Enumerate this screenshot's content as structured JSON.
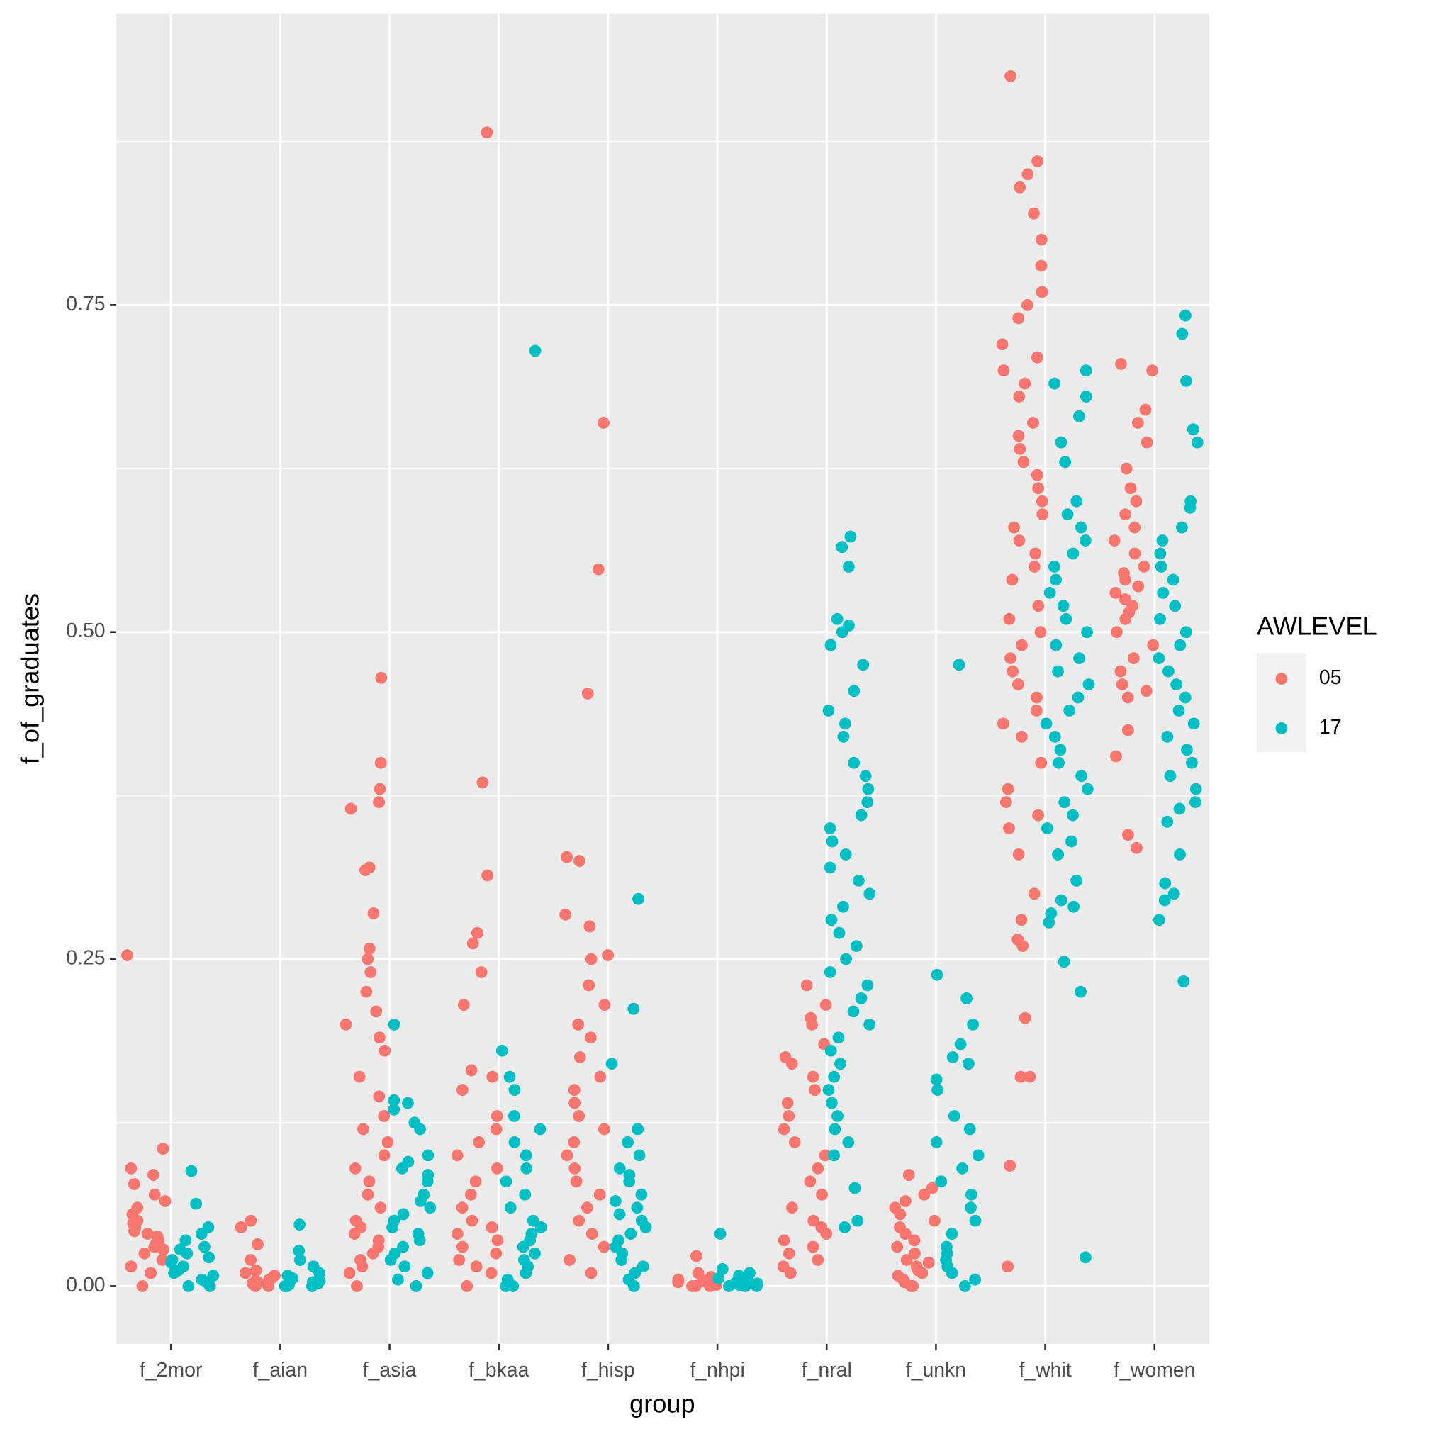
{
  "chart_data": {
    "type": "jitter",
    "x_label": "group",
    "y_label": "f_of_graduates",
    "legend_title": "AWLEVEL",
    "grid": true,
    "legend_position": "right",
    "ylim": [
      -0.0441,
      0.9727
    ],
    "yticks": [
      {
        "value": 0,
        "label": "0.00"
      },
      {
        "value": 0.25,
        "label": "0.25"
      },
      {
        "value": 0.5,
        "label": "0.50"
      },
      {
        "value": 0.75,
        "label": "0.75"
      }
    ],
    "categories": [
      "f_2mor",
      "f_aian",
      "f_asia",
      "f_bkaa",
      "f_hisp",
      "f_nhpi",
      "f_nral",
      "f_unkn",
      "f_whit",
      "f_women"
    ],
    "series": [
      {
        "name": "05",
        "color": "#F8766D",
        "values": [
          [
            0.253,
            0.105,
            0.09,
            0.085,
            0.078,
            0.07,
            0.065,
            0.06,
            0.055,
            0.05,
            0.048,
            0.045,
            0.042,
            0.04,
            0.038,
            0.035,
            0.032,
            0.03,
            0.028,
            0.025,
            0.02,
            0.015,
            0.01,
            0.0
          ],
          [
            0.05,
            0.045,
            0.032,
            0.02,
            0.012,
            0.01,
            0.008,
            0.006,
            0.005,
            0.004,
            0.003,
            0.002,
            0.001,
            0.0,
            0.0
          ],
          [
            0.465,
            0.4,
            0.38,
            0.37,
            0.365,
            0.32,
            0.318,
            0.285,
            0.258,
            0.25,
            0.24,
            0.225,
            0.21,
            0.2,
            0.19,
            0.18,
            0.16,
            0.145,
            0.13,
            0.12,
            0.11,
            0.1,
            0.09,
            0.08,
            0.07,
            0.06,
            0.05,
            0.045,
            0.04,
            0.035,
            0.03,
            0.025,
            0.02,
            0.015,
            0.01,
            0.0
          ],
          [
            0.882,
            0.385,
            0.314,
            0.27,
            0.262,
            0.24,
            0.215,
            0.165,
            0.16,
            0.15,
            0.13,
            0.12,
            0.11,
            0.1,
            0.09,
            0.08,
            0.07,
            0.06,
            0.05,
            0.045,
            0.04,
            0.035,
            0.03,
            0.025,
            0.02,
            0.015,
            0.01,
            0.0
          ],
          [
            0.66,
            0.548,
            0.453,
            0.328,
            0.325,
            0.284,
            0.275,
            0.253,
            0.25,
            0.23,
            0.215,
            0.2,
            0.19,
            0.175,
            0.16,
            0.15,
            0.14,
            0.13,
            0.12,
            0.11,
            0.1,
            0.09,
            0.08,
            0.07,
            0.06,
            0.05,
            0.04,
            0.03,
            0.02,
            0.01
          ],
          [
            0.023,
            0.01,
            0.007,
            0.005,
            0.004,
            0.003,
            0.002,
            0.001,
            0.0,
            0.0,
            0.0
          ],
          [
            0.23,
            0.215,
            0.205,
            0.2,
            0.185,
            0.175,
            0.17,
            0.16,
            0.15,
            0.14,
            0.13,
            0.12,
            0.11,
            0.1,
            0.09,
            0.08,
            0.07,
            0.06,
            0.05,
            0.045,
            0.04,
            0.035,
            0.03,
            0.025,
            0.02,
            0.015,
            0.01
          ],
          [
            0.085,
            0.075,
            0.07,
            0.065,
            0.06,
            0.055,
            0.05,
            0.045,
            0.04,
            0.035,
            0.03,
            0.025,
            0.02,
            0.018,
            0.015,
            0.012,
            0.01,
            0.008,
            0.005,
            0.003,
            0.0,
            0.0
          ],
          [
            0.925,
            0.86,
            0.85,
            0.84,
            0.82,
            0.8,
            0.78,
            0.76,
            0.75,
            0.74,
            0.72,
            0.71,
            0.7,
            0.69,
            0.68,
            0.66,
            0.65,
            0.64,
            0.63,
            0.62,
            0.61,
            0.6,
            0.59,
            0.58,
            0.57,
            0.56,
            0.55,
            0.54,
            0.52,
            0.51,
            0.5,
            0.49,
            0.48,
            0.47,
            0.46,
            0.45,
            0.44,
            0.43,
            0.42,
            0.4,
            0.38,
            0.37,
            0.36,
            0.35,
            0.33,
            0.3,
            0.28,
            0.265,
            0.26,
            0.205,
            0.16,
            0.16,
            0.092,
            0.015
          ],
          [
            0.705,
            0.7,
            0.67,
            0.66,
            0.645,
            0.625,
            0.61,
            0.6,
            0.59,
            0.58,
            0.57,
            0.56,
            0.55,
            0.545,
            0.54,
            0.535,
            0.53,
            0.525,
            0.52,
            0.515,
            0.51,
            0.5,
            0.49,
            0.48,
            0.47,
            0.46,
            0.455,
            0.45,
            0.425,
            0.405,
            0.345,
            0.335
          ]
        ]
      },
      {
        "name": "17",
        "color": "#00BFC4",
        "values": [
          [
            0.088,
            0.063,
            0.045,
            0.04,
            0.035,
            0.03,
            0.028,
            0.025,
            0.022,
            0.02,
            0.018,
            0.015,
            0.012,
            0.01,
            0.008,
            0.005,
            0.003,
            0.0,
            0.0
          ],
          [
            0.047,
            0.027,
            0.02,
            0.015,
            0.01,
            0.008,
            0.006,
            0.004,
            0.003,
            0.002,
            0.001,
            0.0,
            0.0,
            0.0
          ],
          [
            0.2,
            0.142,
            0.14,
            0.135,
            0.125,
            0.12,
            0.1,
            0.095,
            0.09,
            0.085,
            0.08,
            0.07,
            0.065,
            0.06,
            0.055,
            0.05,
            0.045,
            0.04,
            0.035,
            0.03,
            0.025,
            0.02,
            0.015,
            0.01,
            0.005,
            0.0
          ],
          [
            0.715,
            0.18,
            0.16,
            0.15,
            0.13,
            0.12,
            0.11,
            0.1,
            0.09,
            0.08,
            0.07,
            0.06,
            0.05,
            0.045,
            0.04,
            0.035,
            0.03,
            0.025,
            0.02,
            0.015,
            0.01,
            0.005,
            0.0,
            0.0
          ],
          [
            0.296,
            0.212,
            0.17,
            0.12,
            0.11,
            0.1,
            0.09,
            0.085,
            0.08,
            0.07,
            0.065,
            0.06,
            0.055,
            0.05,
            0.045,
            0.04,
            0.035,
            0.03,
            0.025,
            0.02,
            0.015,
            0.01,
            0.005,
            0.0
          ],
          [
            0.04,
            0.013,
            0.01,
            0.008,
            0.006,
            0.004,
            0.003,
            0.002,
            0.001,
            0.0,
            0.0,
            0.0
          ],
          [
            0.573,
            0.565,
            0.55,
            0.51,
            0.505,
            0.5,
            0.49,
            0.475,
            0.455,
            0.44,
            0.43,
            0.42,
            0.4,
            0.39,
            0.38,
            0.37,
            0.36,
            0.35,
            0.34,
            0.33,
            0.32,
            0.31,
            0.3,
            0.29,
            0.28,
            0.27,
            0.26,
            0.25,
            0.24,
            0.23,
            0.22,
            0.21,
            0.2,
            0.19,
            0.18,
            0.17,
            0.16,
            0.15,
            0.14,
            0.13,
            0.12,
            0.11,
            0.1,
            0.075,
            0.05,
            0.045
          ],
          [
            0.475,
            0.238,
            0.22,
            0.2,
            0.185,
            0.175,
            0.17,
            0.158,
            0.15,
            0.13,
            0.12,
            0.11,
            0.1,
            0.09,
            0.08,
            0.07,
            0.06,
            0.05,
            0.04,
            0.03,
            0.025,
            0.02,
            0.015,
            0.01,
            0.005,
            0.0
          ],
          [
            0.7,
            0.69,
            0.68,
            0.665,
            0.645,
            0.63,
            0.6,
            0.59,
            0.58,
            0.57,
            0.56,
            0.55,
            0.54,
            0.53,
            0.52,
            0.51,
            0.5,
            0.49,
            0.48,
            0.47,
            0.46,
            0.45,
            0.44,
            0.43,
            0.42,
            0.41,
            0.4,
            0.39,
            0.38,
            0.37,
            0.36,
            0.35,
            0.34,
            0.33,
            0.31,
            0.295,
            0.29,
            0.285,
            0.278,
            0.248,
            0.225,
            0.022
          ],
          [
            0.742,
            0.728,
            0.692,
            0.655,
            0.645,
            0.6,
            0.595,
            0.58,
            0.57,
            0.56,
            0.55,
            0.54,
            0.53,
            0.52,
            0.51,
            0.5,
            0.49,
            0.48,
            0.47,
            0.46,
            0.45,
            0.44,
            0.43,
            0.42,
            0.41,
            0.4,
            0.39,
            0.38,
            0.37,
            0.365,
            0.355,
            0.33,
            0.308,
            0.3,
            0.295,
            0.28,
            0.233
          ]
        ]
      }
    ]
  }
}
